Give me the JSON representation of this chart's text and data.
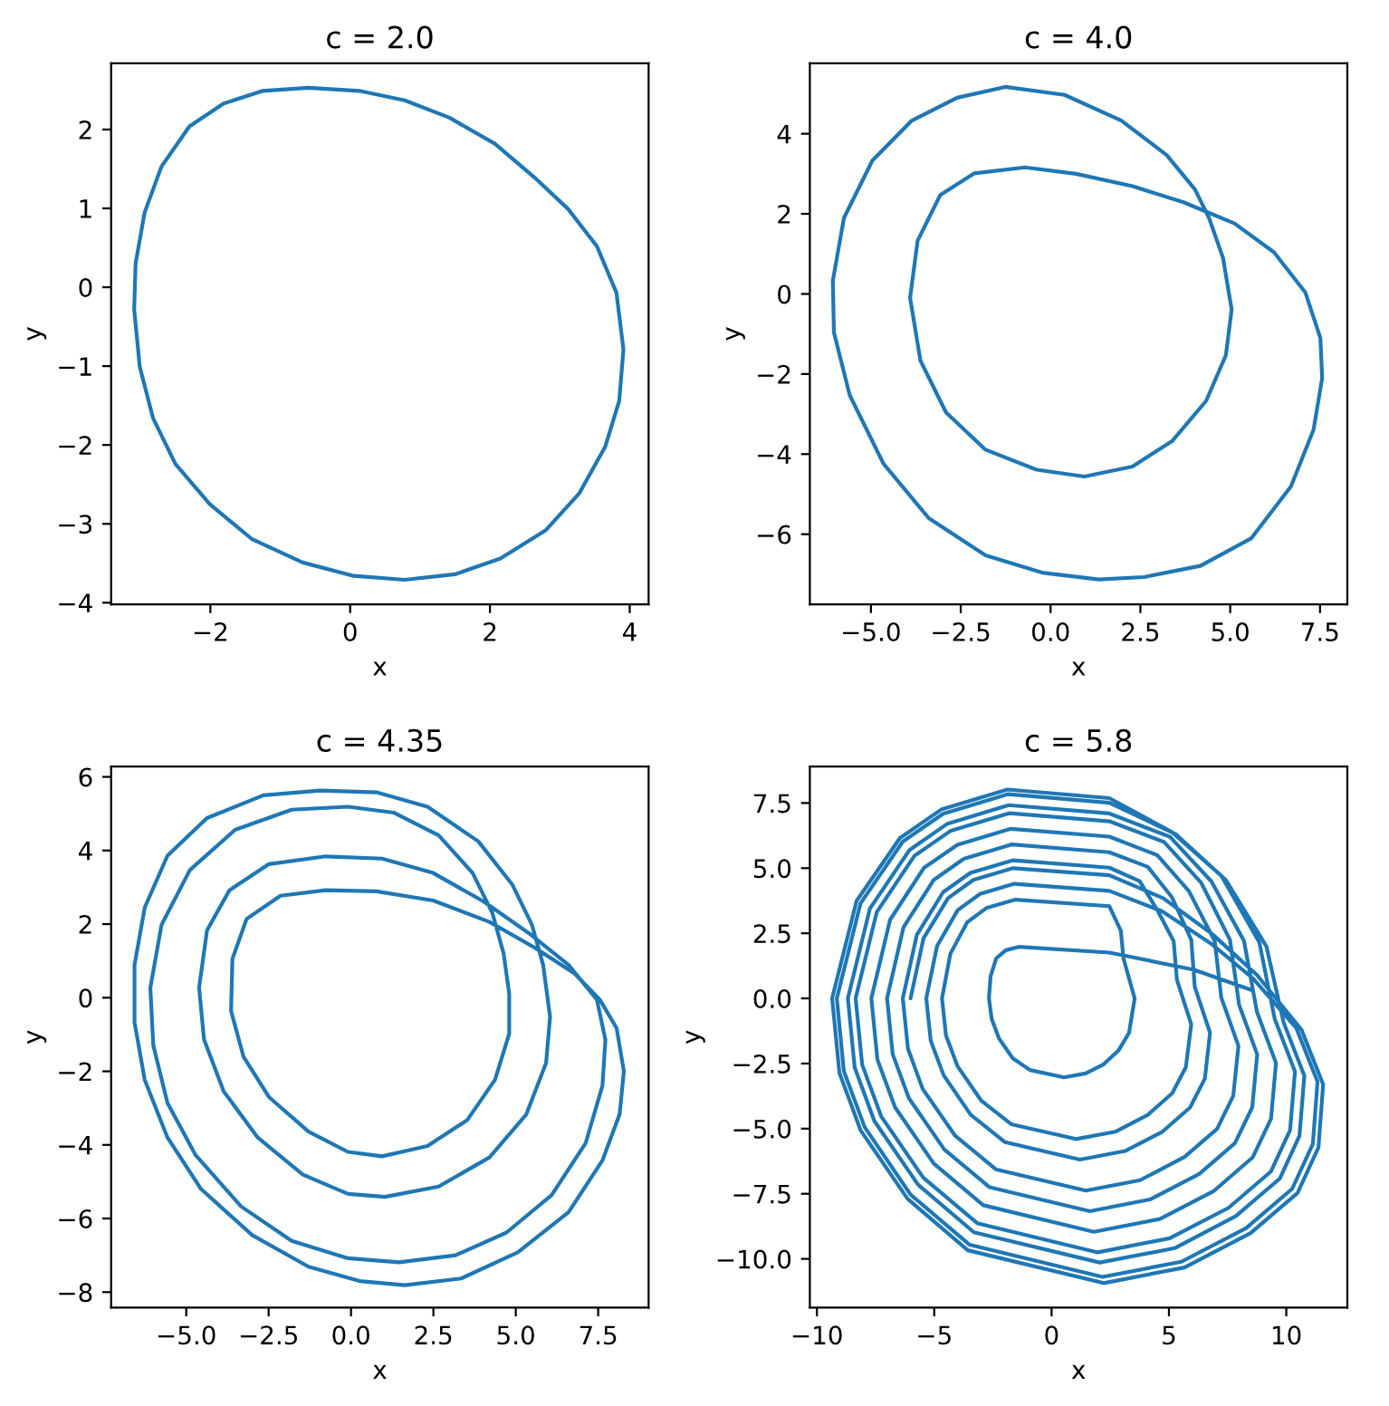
{
  "chart_data": [
    {
      "type": "line",
      "title": "c = 2.0",
      "xlabel": "x",
      "ylabel": "y",
      "color": "#1f77b4",
      "x": [
        -0.6,
        0.13,
        0.78,
        1.42,
        2.07,
        2.64,
        3.12,
        3.53,
        3.81,
        3.91,
        3.85,
        3.65,
        3.28,
        2.8,
        2.15,
        1.5,
        0.78,
        0.05,
        -0.68,
        -1.41,
        -2.01,
        -2.5,
        -2.82,
        -3.01,
        -3.09,
        -3.07,
        -2.94,
        -2.7,
        -2.3,
        -1.81,
        -1.25,
        -0.6,
        0.13
      ],
      "values": [
        2.53,
        2.49,
        2.37,
        2.15,
        1.82,
        1.39,
        0.99,
        0.52,
        -0.07,
        -0.79,
        -1.44,
        -2.02,
        -2.61,
        -3.08,
        -3.44,
        -3.64,
        -3.71,
        -3.66,
        -3.49,
        -3.19,
        -2.75,
        -2.24,
        -1.66,
        -1.01,
        -0.28,
        0.3,
        0.95,
        1.53,
        2.04,
        2.33,
        2.49,
        2.53,
        2.49
      ],
      "xlim": [
        -3.42,
        4.27
      ],
      "ylim": [
        -4.02,
        2.84
      ],
      "xticks": [
        -2,
        0,
        2,
        4
      ],
      "yticks": [
        -4,
        -3,
        -2,
        -1,
        0,
        1,
        2
      ]
    },
    {
      "type": "line",
      "title": "c = 4.0",
      "xlabel": "x",
      "ylabel": "y",
      "color": "#1f77b4",
      "x": [
        -1.26,
        0.39,
        1.97,
        3.23,
        4.02,
        4.41,
        4.8,
        5.04,
        4.88,
        4.33,
        3.39,
        2.28,
        0.94,
        -0.39,
        -1.81,
        -2.91,
        -3.62,
        -3.91,
        -3.7,
        -3.07,
        -2.13,
        -0.71,
        0.71,
        2.28,
        3.7,
        5.12,
        6.22,
        7.09,
        7.51,
        7.56,
        7.32,
        6.69,
        5.59,
        4.17,
        2.6,
        1.34,
        -0.24,
        -1.81,
        -3.39,
        -4.65,
        -5.59,
        -6.03,
        -6.06,
        -5.75,
        -4.96,
        -3.86,
        -2.6,
        -1.26,
        0.39
      ],
      "values": [
        5.17,
        4.97,
        4.33,
        3.47,
        2.61,
        1.9,
        0.9,
        -0.39,
        -1.53,
        -2.67,
        -3.67,
        -4.31,
        -4.56,
        -4.39,
        -3.89,
        -2.96,
        -1.67,
        -0.1,
        1.33,
        2.47,
        3.01,
        3.16,
        3.0,
        2.69,
        2.29,
        1.76,
        1.04,
        0.04,
        -1.1,
        -2.1,
        -3.39,
        -4.81,
        -6.1,
        -6.79,
        -7.07,
        -7.13,
        -6.96,
        -6.53,
        -5.6,
        -4.24,
        -2.53,
        -0.96,
        0.33,
        1.9,
        3.33,
        4.33,
        4.9,
        5.17,
        4.97
      ],
      "xlim": [
        -6.7,
        8.26
      ],
      "ylim": [
        -7.75,
        5.76
      ],
      "xticks": [
        {
          "value": -5,
          "label": "−5.0"
        },
        -2.5,
        {
          "value": 0,
          "label": "0.0"
        },
        2.5,
        {
          "value": 5,
          "label": "5.0"
        },
        7.5
      ],
      "yticks": [
        -6,
        -4,
        -2,
        0,
        2,
        4
      ]
    },
    {
      "type": "line",
      "title": "c = 4.35",
      "xlabel": "x",
      "ylabel": "y",
      "color": "#1f77b4",
      "x": [
        8.28,
        8.06,
        7.55,
        6.78,
        5.57,
        4.2,
        2.49,
        0.77,
        -0.77,
        -2.14,
        -3.17,
        -3.6,
        -3.64,
        -3.26,
        -2.49,
        -1.29,
        -0.09,
        0.94,
        2.32,
        3.52,
        4.37,
        4.8,
        4.8,
        4.63,
        4.29,
        3.69,
        2.66,
        1.29,
        -0.09,
        -1.8,
        -3.52,
        -4.89,
        -5.75,
        -6.09,
        -6.0,
        -5.57,
        -4.72,
        -3.34,
        -1.8,
        -0.09,
        1.46,
        3.17,
        4.72,
        6.09,
        7.12,
        7.63,
        7.72,
        7.46,
        6.6,
        5.4,
        4.03,
        2.49,
        0.94,
        -0.77,
        -2.49,
        -3.69,
        -4.37,
        -4.61,
        -4.46,
        -3.86,
        -2.83,
        -1.46,
        -0.09,
        1.03,
        2.66,
        4.2,
        5.32,
        5.92,
        6.04,
        5.83,
        5.49,
        4.89,
        3.86,
        2.32,
        0.77,
        -0.94,
        -2.66,
        -4.37,
        -5.57,
        -6.26,
        -6.57,
        -6.57,
        -6.26,
        -5.57,
        -4.55,
        -3.0,
        -1.29,
        0.26,
        1.63,
        3.34,
        5.06,
        6.6,
        7.63,
        8.15,
        8.28,
        8.06
      ],
      "values": [
        -2.0,
        -0.83,
        -0.05,
        0.66,
        1.36,
        2.06,
        2.64,
        2.89,
        2.92,
        2.77,
        2.14,
        1.05,
        -0.36,
        -1.61,
        -2.7,
        -3.64,
        -4.19,
        -4.31,
        -4.03,
        -3.33,
        -2.23,
        -0.98,
        0.11,
        1.2,
        2.3,
        3.39,
        4.41,
        5.03,
        5.19,
        5.11,
        4.56,
        3.47,
        1.98,
        0.27,
        -1.3,
        -2.86,
        -4.27,
        -5.67,
        -6.61,
        -7.08,
        -7.19,
        -7.0,
        -6.38,
        -5.36,
        -3.95,
        -2.39,
        -1.14,
        -0.05,
        0.89,
        1.75,
        2.61,
        3.39,
        3.78,
        3.84,
        3.63,
        2.92,
        1.83,
        0.27,
        -1.14,
        -2.55,
        -3.8,
        -4.81,
        -5.33,
        -5.41,
        -5.13,
        -4.34,
        -3.17,
        -1.77,
        -0.52,
        0.89,
        1.98,
        3.08,
        4.25,
        5.19,
        5.58,
        5.63,
        5.5,
        4.88,
        3.86,
        2.45,
        0.89,
        -0.67,
        -2.23,
        -3.8,
        -5.2,
        -6.45,
        -7.31,
        -7.7,
        -7.81,
        -7.63,
        -6.92,
        -5.83,
        -4.42,
        -3.17,
        -2.0,
        -0.83
      ],
      "xlim": [
        -7.28,
        9.03
      ],
      "ylim": [
        -8.42,
        6.28
      ],
      "xticks": [
        {
          "value": -5,
          "label": "−5.0"
        },
        -2.5,
        {
          "value": 0,
          "label": "0.0"
        },
        2.5,
        {
          "value": 5,
          "label": "5.0"
        },
        7.5
      ],
      "yticks": [
        -8,
        -6,
        -4,
        -2,
        0,
        2,
        4,
        6
      ]
    },
    {
      "type": "line",
      "title": "c = 5.8",
      "xlabel": "x",
      "ylabel": "y",
      "color": "#1f77b4",
      "x": [
        8.48,
        6.07,
        2.46,
        -1.4,
        -1.95,
        -2.36,
        -2.6,
        -2.67,
        -2.55,
        -2.24,
        -1.65,
        -0.92,
        0.53,
        1.45,
        2.22,
        2.85,
        3.3,
        3.54,
        3.06,
        2.95,
        2.46,
        -1.54,
        -2.78,
        -3.59,
        -4.31,
        -4.67,
        -4.5,
        -4.01,
        -3.0,
        -1.72,
        1.04,
        2.71,
        4.1,
        5.14,
        5.72,
        5.95,
        5.34,
        5.2,
        4.5,
        3.75,
        2.46,
        -1.66,
        -3.46,
        -4.62,
        -5.74,
        -6.34,
        -6.12,
        -5.49,
        -4.12,
        -2.38,
        1.46,
        3.77,
        5.66,
        7.05,
        7.74,
        7.96,
        7.23,
        6.95,
        5.85,
        4.5,
        2.46,
        -1.76,
        -4.01,
        -5.44,
        -6.88,
        -7.68,
        -7.42,
        -6.67,
        -5.02,
        -2.91,
        1.8,
        4.61,
        6.92,
        8.57,
        9.35,
        9.56,
        8.75,
        8.2,
        6.81,
        5.05,
        2.46,
        -1.83,
        -4.43,
        -6.05,
        -7.74,
        -8.68,
        -8.39,
        -7.55,
        -5.69,
        -3.31,
        2.05,
        5.24,
        7.85,
        9.72,
        10.56,
        10.77,
        9.89,
        9.15,
        7.43,
        5.3,
        2.46,
        -1.87,
        -4.62,
        -6.34,
        -8.14,
        -9.15,
        -8.85,
        -7.96,
        -6.01,
        -3.49,
        2.17,
        5.53,
        8.29,
        10.25,
        11.13,
        11.33,
        10.42,
        8.6,
        6.8,
        4.7,
        2.46,
        -1.59,
        -3.05,
        -4.0,
        -4.88,
        -5.34,
        -5.15,
        -4.6,
        -3.45,
        -1.98,
        1.21,
        3.13,
        4.72,
        5.9,
        6.53,
        6.75,
        6.1,
        5.95,
        5.13,
        4.1,
        2.46,
        -1.71,
        -3.74,
        -5.03,
        -6.31,
        -7.01,
        -6.77,
        -6.08,
        -4.57,
        -2.64,
        1.63,
        4.19,
        6.29,
        7.81,
        8.55,
        8.76,
        7.99,
        7.6,
        6.38,
        4.8,
        2.46,
        -1.81,
        -4.29,
        -5.85,
        -7.45,
        -8.35,
        -8.07,
        -7.26,
        -5.47,
        -3.17,
        1.97,
        5.03,
        7.54,
        9.34,
        10.16,
        10.37,
        9.51,
        8.85,
        7.24,
        5.1,
        2.46,
        -1.88,
        -4.7,
        -6.46,
        -8.31,
        -9.35,
        -9.04,
        -8.14,
        -6.14,
        -3.57,
        2.22,
        5.66,
        8.48,
        10.48,
        11.37,
        11.57,
        10.65,
        8.75,
        6.86,
        4.75,
        2.46,
        -1.64,
        -3.33,
        -4.41,
        -5.46,
        -6.01
      ],
      "values": [
        0.33,
        1.1,
        1.76,
        1.98,
        1.85,
        1.54,
        0.85,
        0.0,
        -0.8,
        -1.54,
        -2.3,
        -2.75,
        -3.03,
        -2.88,
        -2.53,
        -2.0,
        -1.32,
        0.0,
        1.54,
        2.6,
        3.54,
        3.79,
        3.47,
        2.93,
        1.72,
        0.0,
        -1.42,
        -2.6,
        -3.92,
        -4.83,
        -5.4,
        -5.12,
        -4.47,
        -3.64,
        -2.64,
        -0.99,
        0.71,
        2.2,
        3.4,
        4.5,
        5.02,
        5.3,
        4.82,
        4.08,
        2.44,
        0.0,
        -1.93,
        -3.48,
        -5.26,
        -6.56,
        -7.38,
        -6.98,
        -6.09,
        -5.01,
        -3.74,
        -1.82,
        0.03,
        2.2,
        4.12,
        5.5,
        6.21,
        6.51,
        5.9,
        5.01,
        3.02,
        0.0,
        -2.35,
        -4.18,
        -6.34,
        -7.94,
        -8.96,
        -8.47,
        -7.39,
        -6.1,
        -4.62,
        -2.48,
        -0.52,
        2.2,
        4.49,
        6.2,
        7.1,
        7.42,
        6.71,
        5.7,
        3.45,
        0.0,
        -2.65,
        -4.71,
        -7.15,
        -8.98,
        -10.14,
        -9.59,
        -8.36,
        -6.92,
        -5.28,
        -2.97,
        -0.94,
        2.0,
        4.54,
        6.3,
        7.51,
        7.84,
        7.09,
        6.02,
        3.65,
        0.0,
        -2.8,
        -4.95,
        -7.53,
        -9.46,
        -10.69,
        -10.11,
        -8.82,
        -7.31,
        -5.59,
        -3.2,
        -1.13,
        0.75,
        2.1,
        3.35,
        4.13,
        4.4,
        4.01,
        3.39,
        2.01,
        0.0,
        -1.62,
        -2.95,
        -4.46,
        -5.52,
        -6.19,
        -5.86,
        -5.12,
        -4.19,
        -3.08,
        -1.32,
        0.44,
        2.25,
        3.88,
        5.05,
        5.61,
        5.91,
        5.36,
        4.54,
        2.73,
        0.0,
        -2.14,
        -3.83,
        -5.8,
        -7.25,
        -8.17,
        -7.72,
        -6.74,
        -5.56,
        -4.18,
        -2.15,
        -0.25,
        2.25,
        4.43,
        6.0,
        6.8,
        7.11,
        6.44,
        5.47,
        3.31,
        0.0,
        -2.55,
        -4.53,
        -6.88,
        -8.63,
        -9.75,
        -9.21,
        -8.04,
        -6.65,
        -5.06,
        -2.81,
        -0.8,
        2.15,
        4.7,
        6.4,
        7.69,
        8.02,
        7.25,
        6.16,
        3.74,
        0.0,
        -2.86,
        -5.06,
        -7.69,
        -9.67,
        -10.93,
        -10.33,
        -9.01,
        -7.47,
        -5.72,
        -3.3,
        -1.21,
        0.9,
        2.46,
        3.85,
        4.73,
        5.0,
        4.55,
        3.85,
        2.3,
        0.0
      ],
      "xlim": [
        -10.3,
        12.6
      ],
      "ylim": [
        -11.87,
        8.9
      ],
      "xticks": [
        -10,
        -5,
        0,
        5,
        10
      ],
      "yticks": [
        {
          "value": -10,
          "label": "−10.0"
        },
        -7.5,
        {
          "value": -5,
          "label": "−5.0"
        },
        -2.5,
        {
          "value": 0,
          "label": "0.0"
        },
        2.5,
        {
          "value": 5,
          "label": "5.0"
        },
        7.5
      ]
    }
  ]
}
